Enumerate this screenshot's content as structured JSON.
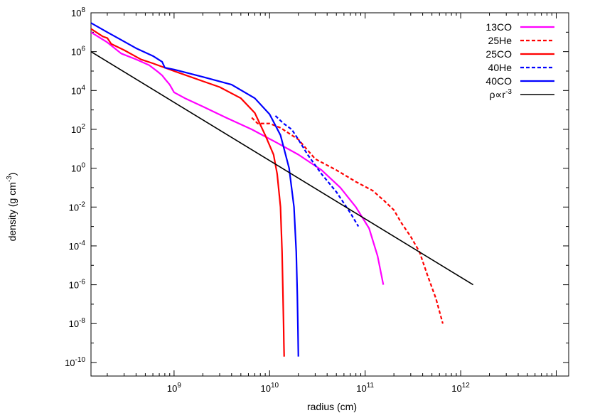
{
  "chart_data": {
    "type": "line",
    "title": "",
    "xlabel": "radius (cm)",
    "ylabel_text": "density (g cm",
    "ylabel_exp": "-3",
    "ylabel_close": ")",
    "x_scale": "log",
    "y_scale": "log",
    "xlim": [
      135000000,
      13500000000000
    ],
    "ylim": [
      2e-11,
      100000000.0
    ],
    "grid": false,
    "legend_position": "top-right",
    "x_ticks": [
      {
        "value": 1000000000.0,
        "base": "10",
        "exp": "9"
      },
      {
        "value": 10000000000.0,
        "base": "10",
        "exp": "10"
      },
      {
        "value": 100000000000.0,
        "base": "10",
        "exp": "11"
      },
      {
        "value": 1000000000000.0,
        "base": "10",
        "exp": "12"
      }
    ],
    "y_ticks": [
      {
        "value": 1e-10,
        "base": "10",
        "exp": "-10"
      },
      {
        "value": 1e-08,
        "base": "10",
        "exp": "-8"
      },
      {
        "value": 1e-06,
        "base": "10",
        "exp": "-6"
      },
      {
        "value": 0.0001,
        "base": "10",
        "exp": "-4"
      },
      {
        "value": 0.01,
        "base": "10",
        "exp": "-2"
      },
      {
        "value": 1.0,
        "base": "10",
        "exp": "0"
      },
      {
        "value": 100.0,
        "base": "10",
        "exp": "2"
      },
      {
        "value": 10000.0,
        "base": "10",
        "exp": "4"
      },
      {
        "value": 1000000.0,
        "base": "10",
        "exp": "6"
      },
      {
        "value": 100000000.0,
        "base": "10",
        "exp": "8"
      }
    ],
    "series": [
      {
        "name": "13CO",
        "color": "#ff00ff",
        "dash": "solid",
        "x": [
          135000000.0,
          200000000.0,
          280000000.0,
          400000000.0,
          550000000.0,
          680000000.0,
          750000000.0,
          800000000.0,
          900000000.0,
          1000000000.0,
          1300000000.0,
          2000000000.0,
          3500000000.0,
          6500000000.0,
          12000000000.0,
          20000000000.0,
          35000000000.0,
          55000000000.0,
          80000000000.0,
          110000000000.0,
          135000000000.0,
          155000000000.0
        ],
        "y": [
          10000000.0,
          3000000.0,
          800000.0,
          400000.0,
          200000.0,
          90000.0,
          60000.0,
          40000.0,
          20000.0,
          8000.0,
          4000.0,
          1500.0,
          400.0,
          100.0,
          20,
          5,
          0.8,
          0.1,
          0.01,
          0.0008,
          3e-05,
          1e-06
        ]
      },
      {
        "name": "25He",
        "color": "#ff0000",
        "dash": "dashed",
        "x": [
          6500000000.0,
          7500000000.0,
          10000000000.0,
          13000000000.0,
          20000000000.0,
          30000000000.0,
          50000000000.0,
          80000000000.0,
          120000000000.0,
          160000000000.0,
          200000000000.0,
          240000000000.0,
          300000000000.0,
          370000000000.0,
          450000000000.0,
          550000000000.0,
          650000000000.0
        ],
        "y": [
          400,
          200,
          200,
          120,
          30,
          3,
          0.8,
          0.2,
          0.07,
          0.02,
          0.007,
          0.0015,
          0.0003,
          5e-05,
          3e-06,
          2e-07,
          1e-08
        ]
      },
      {
        "name": "25CO",
        "color": "#ff0000",
        "dash": "solid",
        "x": [
          135000000.0,
          180000000.0,
          200000000.0,
          220000000.0,
          300000000.0,
          450000000.0,
          600000000.0,
          1000000000.0,
          2000000000.0,
          3000000000.0,
          5000000000.0,
          7000000000.0,
          9000000000.0,
          11000000000.0,
          12000000000.0,
          13000000000.0,
          13500000000.0,
          13800000000.0,
          14000000000.0,
          14100000000.0,
          14200000000.0
        ],
        "y": [
          15000000.0,
          6000000.0,
          5000000.0,
          2500000.0,
          1200000.0,
          400000.0,
          250000.0,
          100000.0,
          30000.0,
          15000.0,
          4000.0,
          700,
          50,
          5,
          0.5,
          0.01,
          5e-05,
          3e-07,
          1e-08,
          1e-09,
          2e-10
        ]
      },
      {
        "name": "40He",
        "color": "#0000ff",
        "dash": "dashed",
        "x": [
          11500000000.0,
          14000000000.0,
          17000000000.0,
          20000000000.0,
          25000000000.0,
          35000000000.0,
          50000000000.0,
          70000000000.0,
          85000000000.0
        ],
        "y": [
          500,
          200,
          100,
          30,
          5,
          0.5,
          0.06,
          0.005,
          0.001
        ]
      },
      {
        "name": "40CO",
        "color": "#0000ff",
        "dash": "solid",
        "x": [
          135000000.0,
          200000000.0,
          280000000.0,
          400000000.0,
          600000000.0,
          750000000.0,
          800000000.0,
          1000000000.0,
          2000000000.0,
          4000000000.0,
          7000000000.0,
          10000000000.0,
          13000000000.0,
          16000000000.0,
          18000000000.0,
          19000000000.0,
          19500000000.0,
          19800000000.0,
          20000000000.0
        ],
        "y": [
          30000000.0,
          10000000.0,
          4000000.0,
          1500000.0,
          600000.0,
          300000.0,
          150000.0,
          120000.0,
          50000.0,
          20000.0,
          4000.0,
          600,
          50,
          1,
          0.01,
          5e-05,
          3e-07,
          5e-09,
          2e-10
        ]
      },
      {
        "name_text": "ρ∝r",
        "name_exp": "-3",
        "color": "#000000",
        "dash": "solid",
        "x": [
          135000000.0,
          1350000000000.0
        ],
        "y": [
          1000000.0,
          1e-06
        ]
      }
    ]
  }
}
